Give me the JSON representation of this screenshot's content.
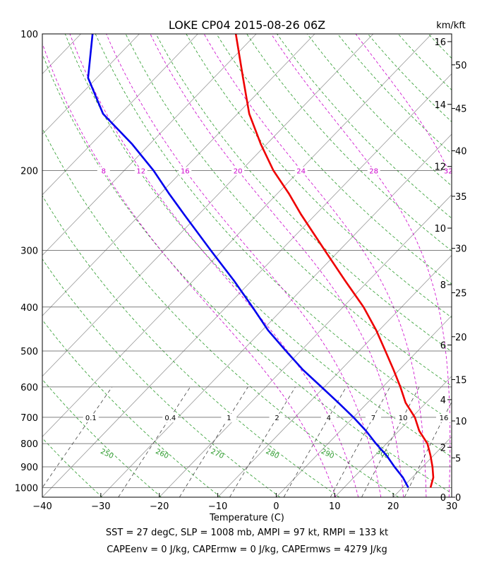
{
  "chart_data": {
    "type": "line",
    "title": "LOKE CP04 2015-08-26 06Z",
    "xlabel": "Temperature (C)",
    "ylabel": "",
    "altitude_label": "km/kft",
    "footer_lines": [
      "SST = 27 degC, SLP = 1008 mb, AMPI = 97 kt, RMPI = 133 kt",
      "CAPEenv = 0 J/kg, CAPErmw = 0 J/kg, CAPErmws = 4279 J/kg"
    ],
    "xlim": [
      -40,
      30
    ],
    "ylim": [
      1050,
      100
    ],
    "y_scale": "log",
    "skew_degC_per_decade": 75,
    "x_ticks": [
      -40,
      -30,
      -20,
      -10,
      0,
      10,
      20,
      30
    ],
    "x_tick_labels": [
      "−40",
      "−30",
      "−20",
      "−10",
      "0",
      "10",
      "20",
      "30"
    ],
    "pressure_ticks": [
      1000,
      900,
      800,
      700,
      600,
      500,
      400,
      300,
      200,
      100
    ],
    "pressure_tick_labels": [
      "1000",
      "900",
      "800",
      "700",
      "600",
      "500",
      "400",
      "300",
      "200",
      "100"
    ],
    "km_ticks": [
      {
        "label": "0",
        "p": 1050
      },
      {
        "label": "2",
        "p": 815
      },
      {
        "label": "4",
        "p": 640
      },
      {
        "label": "6",
        "p": 485
      },
      {
        "label": "8",
        "p": 357
      },
      {
        "label": "10",
        "p": 268
      },
      {
        "label": "12",
        "p": 196
      },
      {
        "label": "14",
        "p": 143
      },
      {
        "label": "16",
        "p": 104
      }
    ],
    "kft_ticks": [
      {
        "label": "0",
        "p": 1050
      },
      {
        "label": "5",
        "p": 860
      },
      {
        "label": "10",
        "p": 713
      },
      {
        "label": "15",
        "p": 578
      },
      {
        "label": "20",
        "p": 465
      },
      {
        "label": "25",
        "p": 372
      },
      {
        "label": "30",
        "p": 297
      },
      {
        "label": "35",
        "p": 228
      },
      {
        "label": "40",
        "p": 181
      },
      {
        "label": "45",
        "p": 146
      },
      {
        "label": "50",
        "p": 117
      }
    ],
    "isotherms": [
      -150,
      -140,
      -130,
      -120,
      -110,
      -100,
      -90,
      -80,
      -70,
      -60,
      -50,
      -40,
      -30,
      -20,
      -10,
      0,
      10,
      20,
      30
    ],
    "dry_adiabats_K": [
      220,
      230,
      240,
      250,
      260,
      270,
      280,
      290,
      300,
      310,
      320,
      330,
      340,
      350,
      360,
      370,
      380,
      390,
      400,
      410,
      420,
      430,
      440
    ],
    "dry_adiabat_labels": [
      "250",
      "260",
      "270",
      "280",
      "290",
      "300"
    ],
    "dry_adiabat_label_values": [
      250,
      260,
      270,
      280,
      290,
      300
    ],
    "moist_adiabat_labels": [
      "8",
      "12",
      "16",
      "20",
      "24",
      "28",
      "32"
    ],
    "moist_adiabat_label_values": [
      8,
      12,
      16,
      20,
      24,
      28,
      32
    ],
    "mixing_ratio_labels": [
      "0.1",
      "0.4",
      "1",
      "2",
      "4",
      "7",
      "10",
      "16"
    ],
    "mixing_ratio_values": [
      0.1,
      0.4,
      1,
      2,
      4,
      7,
      10,
      16
    ],
    "colors": {
      "temperature": "#ee0000",
      "dewpoint": "#0000ee",
      "isobar": "#555555",
      "isotherm": "#999999",
      "dry_adiabat": "#2a9a2a",
      "moist_adiabat": "#cc00cc",
      "mixing_ratio": "#444444"
    },
    "series": [
      {
        "name": "",
        "variable": "temperature",
        "pressure": [
          1000,
          950,
          900,
          850,
          800,
          750,
          700,
          650,
          600,
          550,
          500,
          450,
          400,
          350,
          300,
          250,
          225,
          200,
          175,
          150,
          125,
          100
        ],
        "values": [
          24.8,
          23.6,
          21.7,
          19.5,
          17.0,
          13.5,
          10.5,
          6.5,
          3.0,
          -1.0,
          -5.5,
          -10.5,
          -16.5,
          -24.0,
          -32.5,
          -42.5,
          -48.0,
          -54.5,
          -61.0,
          -68.0,
          -75.0,
          -83.5
        ]
      },
      {
        "name": "",
        "variable": "dewpoint",
        "pressure": [
          1000,
          950,
          900,
          850,
          800,
          750,
          700,
          650,
          600,
          550,
          500,
          450,
          400,
          350,
          300,
          250,
          225,
          200,
          175,
          150,
          125,
          100
        ],
        "values": [
          21.0,
          18.4,
          15.2,
          12.0,
          8.2,
          4.4,
          0.0,
          -5.0,
          -10.5,
          -16.5,
          -22.5,
          -29.0,
          -35.5,
          -43.0,
          -52.0,
          -62.5,
          -68.5,
          -75.0,
          -83.0,
          -93.0,
          -101.5,
          -108.0
        ]
      }
    ]
  }
}
